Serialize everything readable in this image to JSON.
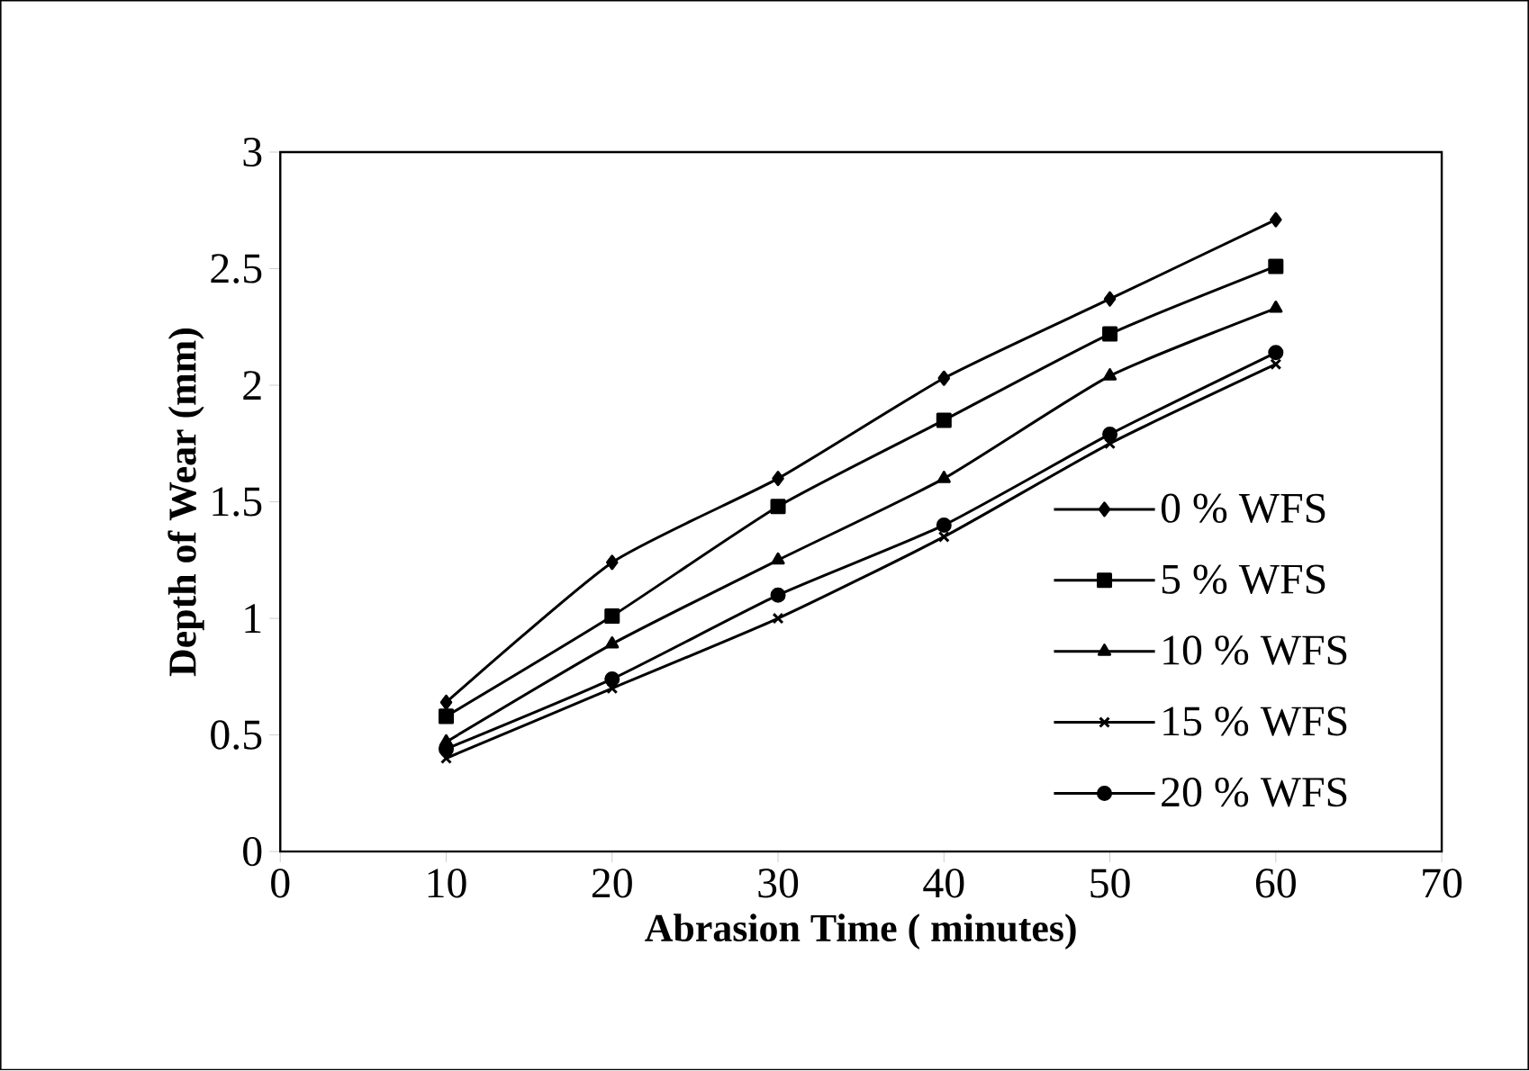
{
  "chart_data": {
    "type": "line",
    "xlabel": "Abrasion Time ( minutes)",
    "ylabel": "Depth of Wear (mm)",
    "x": [
      10,
      20,
      30,
      40,
      50,
      60
    ],
    "series": [
      {
        "name": "0 % WFS",
        "color": "#000000",
        "marker": "diamond",
        "values": [
          0.64,
          1.24,
          1.6,
          2.03,
          2.37,
          2.71
        ]
      },
      {
        "name": "5 % WFS",
        "color": "#000000",
        "marker": "square",
        "values": [
          0.58,
          1.01,
          1.48,
          1.85,
          2.22,
          2.51
        ]
      },
      {
        "name": "10 % WFS",
        "color": "#000000",
        "marker": "triangle",
        "values": [
          0.47,
          0.89,
          1.25,
          1.6,
          2.04,
          2.33
        ]
      },
      {
        "name": "15 % WFS",
        "color": "#000000",
        "marker": "cross",
        "values": [
          0.4,
          0.7,
          1.0,
          1.35,
          1.75,
          2.09
        ]
      },
      {
        "name": "20 % WFS",
        "color": "#000000",
        "marker": "circle",
        "values": [
          0.44,
          0.74,
          1.1,
          1.4,
          1.79,
          2.14
        ]
      }
    ],
    "xlim": [
      0,
      70
    ],
    "xticks": [
      0,
      10,
      20,
      30,
      40,
      50,
      60,
      70
    ],
    "ylim": [
      0,
      3
    ],
    "yticks": [
      0,
      0.5,
      1,
      1.5,
      2,
      2.5,
      3
    ],
    "grid": false,
    "legend": "right",
    "line_style": "solid"
  }
}
